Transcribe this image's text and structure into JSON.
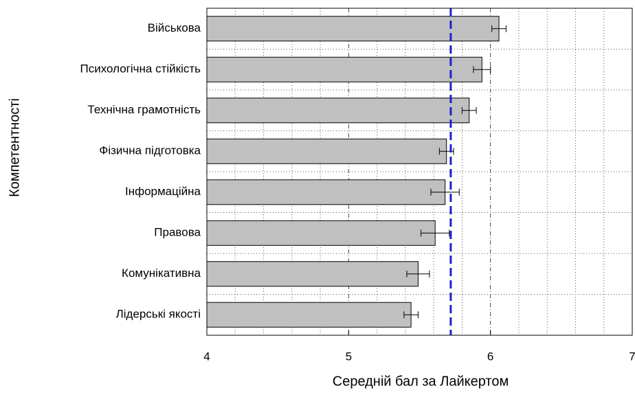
{
  "chart_data": {
    "type": "hbar",
    "xlabel": "Середній бал за Лайкертом",
    "ylabel": "Компетентності",
    "categories": [
      "Військова",
      "Психологічна стійкість",
      "Технічна грамотність",
      "Фізична підготовка",
      "Інформаційна",
      "Правова",
      "Комунікативна",
      "Лідерські якості"
    ],
    "values": [
      6.06,
      5.94,
      5.85,
      5.69,
      5.68,
      5.61,
      5.49,
      5.44
    ],
    "errors": [
      0.05,
      0.06,
      0.05,
      0.05,
      0.1,
      0.1,
      0.08,
      0.05
    ],
    "color": "#c0c0c0",
    "reference_line": {
      "value": 5.72,
      "color": "#1f1fd0"
    },
    "xlim": [
      4,
      7
    ],
    "xticks": [
      4,
      5,
      6,
      7
    ],
    "xminor_grid": [
      4.2,
      4.4,
      4.6,
      4.8,
      5.2,
      5.4,
      5.6,
      5.8,
      6.2,
      6.4,
      6.6,
      6.8
    ],
    "grid": true
  }
}
